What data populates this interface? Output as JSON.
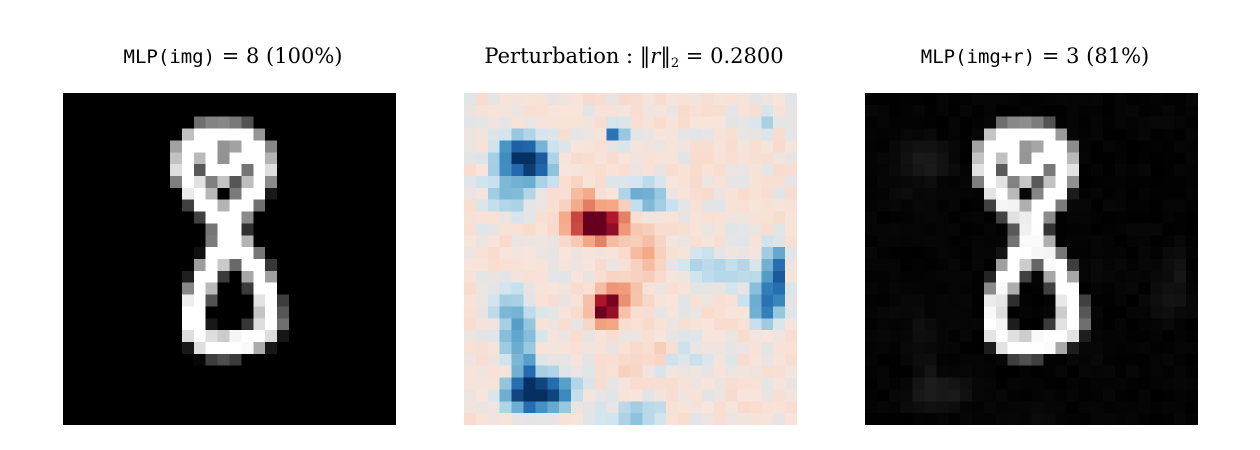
{
  "panels": [
    {
      "id": "original",
      "title_func": "MLP(img)",
      "title_eq": " = ",
      "title_label": "8",
      "title_conf": "(100%)",
      "colormap": "gray"
    },
    {
      "id": "perturbation",
      "title_text": "Perturbation : ",
      "title_norm_var": "r",
      "title_norm_sub": "2",
      "title_eq": " = ",
      "title_value": "0.2800",
      "colormap": "RdBu"
    },
    {
      "id": "adversarial",
      "title_func": "MLP(img+r)",
      "title_eq": " = ",
      "title_label": "3",
      "title_conf": "(81%)",
      "colormap": "gray"
    }
  ],
  "chart_data": {
    "type": "heatmap",
    "grid_size": 28,
    "strokes": [
      [
        [
          13,
          3.5
        ],
        [
          15,
          3.6
        ],
        [
          16.5,
          4.7
        ],
        [
          16.8,
          6.6
        ],
        [
          16,
          8.4
        ],
        [
          14.6,
          10
        ],
        [
          14,
          11.8
        ],
        [
          14.8,
          13
        ],
        [
          16.4,
          15.2
        ],
        [
          17.2,
          17.4
        ],
        [
          17.4,
          19.6
        ],
        [
          16.4,
          20.6
        ],
        [
          14,
          21.3
        ],
        [
          12.2,
          21.2
        ],
        [
          11,
          20
        ],
        [
          11,
          18
        ],
        [
          12,
          15.5
        ],
        [
          13.3,
          13.3
        ],
        [
          14,
          11.8
        ],
        [
          12.8,
          10
        ],
        [
          11.2,
          8.4
        ],
        [
          10.2,
          6.6
        ],
        [
          10.4,
          4.7
        ],
        [
          11.6,
          3.6
        ],
        [
          13,
          3.5
        ]
      ],
      [
        [
          12,
          4.5
        ],
        [
          12.8,
          6.5
        ],
        [
          13.6,
          6.7
        ],
        [
          15,
          5.5
        ]
      ]
    ],
    "positive_blobs": [
      [
        10.5,
        10.8,
        1.3,
        1.0,
        1.0
      ],
      [
        11.6,
        11.6,
        1.0,
        0.7,
        0.6
      ],
      [
        13.0,
        10.5,
        0.9,
        0.9,
        0.45
      ],
      [
        12.0,
        17.8,
        0.8,
        0.8,
        0.85
      ],
      [
        11.8,
        18.8,
        0.7,
        0.7,
        0.6
      ],
      [
        13.2,
        17.0,
        1.0,
        0.9,
        0.35
      ],
      [
        15.3,
        13.5,
        1.2,
        1.4,
        0.28
      ],
      [
        10.0,
        8.4,
        0.5,
        0.5,
        0.4
      ],
      [
        16.5,
        21.8,
        1.0,
        0.8,
        0.22
      ],
      [
        14.2,
        22.6,
        1.0,
        0.8,
        0.18
      ]
    ],
    "negative_blobs": [
      [
        4.8,
        5.4,
        1.2,
        1.2,
        0.9
      ],
      [
        6.2,
        6.0,
        0.9,
        0.9,
        0.55
      ],
      [
        12.7,
        3.4,
        0.5,
        0.5,
        0.7
      ],
      [
        26.2,
        15.2,
        0.5,
        1.4,
        0.85
      ],
      [
        25.4,
        17.8,
        0.9,
        1.2,
        0.6
      ],
      [
        5.4,
        25.4,
        1.3,
        0.9,
        0.9
      ],
      [
        7.5,
        25.2,
        1.2,
        0.9,
        0.65
      ],
      [
        5.4,
        24.2,
        0.6,
        1.3,
        0.6
      ],
      [
        4.5,
        20.5,
        0.9,
        1.5,
        0.4
      ],
      [
        3.8,
        17.8,
        1.2,
        1.0,
        0.25
      ],
      [
        15.2,
        8.8,
        1.4,
        1.0,
        0.38
      ],
      [
        3.6,
        8.4,
        1.3,
        1.3,
        0.25
      ],
      [
        21.5,
        15.0,
        2.4,
        1.0,
        0.2
      ],
      [
        14.5,
        27.0,
        1.6,
        0.8,
        0.25
      ],
      [
        25.5,
        2.4,
        0.6,
        0.5,
        0.25
      ],
      [
        17.5,
        22.2,
        2.0,
        1.0,
        0.15
      ]
    ],
    "adversarial_noise_level": 0.07
  }
}
